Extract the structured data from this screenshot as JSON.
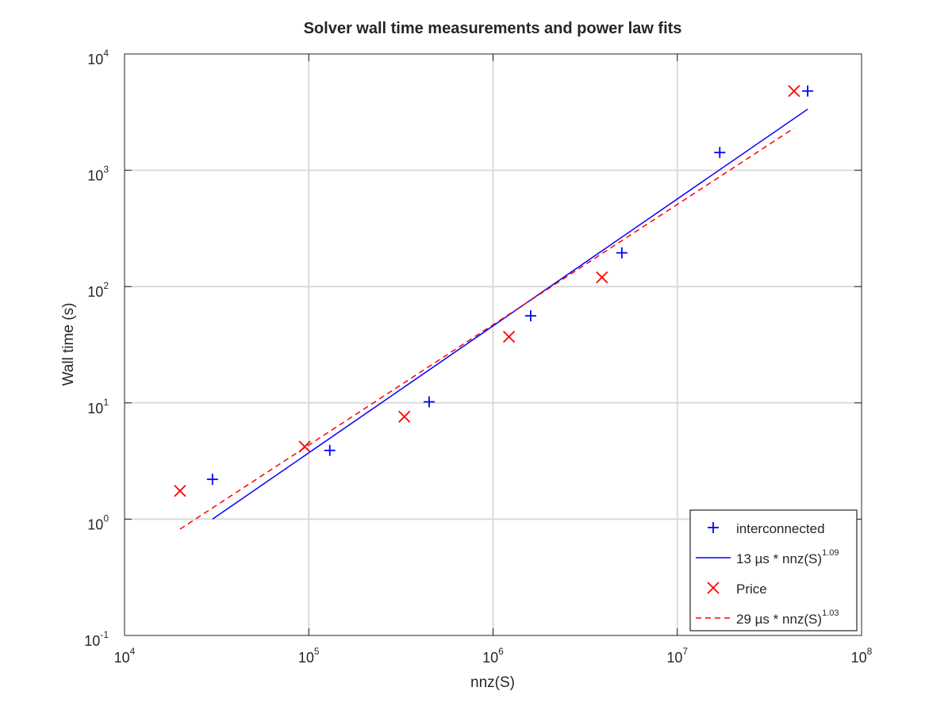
{
  "chart_data": {
    "type": "scatter",
    "title": "Solver wall time measurements and power law fits",
    "xlabel": "nnz(S)",
    "ylabel": "Wall time (s)",
    "xscale": "log",
    "yscale": "log",
    "xlim": [
      10000,
      100000000
    ],
    "ylim": [
      0.1,
      10000
    ],
    "grid": true,
    "legend_position": "bottom-right",
    "x_ticks": [
      {
        "base": "10",
        "exp": "4",
        "value": 10000
      },
      {
        "base": "10",
        "exp": "5",
        "value": 100000
      },
      {
        "base": "10",
        "exp": "6",
        "value": 1000000
      },
      {
        "base": "10",
        "exp": "7",
        "value": 10000000
      },
      {
        "base": "10",
        "exp": "8",
        "value": 100000000
      }
    ],
    "y_ticks": [
      {
        "base": "10",
        "exp": "-1",
        "value": 0.1
      },
      {
        "base": "10",
        "exp": "0",
        "value": 1
      },
      {
        "base": "10",
        "exp": "1",
        "value": 10
      },
      {
        "base": "10",
        "exp": "2",
        "value": 100
      },
      {
        "base": "10",
        "exp": "3",
        "value": 1000
      },
      {
        "base": "10",
        "exp": "4",
        "value": 10000
      }
    ],
    "series": [
      {
        "name": "interconnected",
        "kind": "markers",
        "marker": "plus",
        "color": "#0000ff",
        "points": [
          {
            "x": 30000,
            "y": 2.2
          },
          {
            "x": 130000,
            "y": 3.9
          },
          {
            "x": 450000,
            "y": 10.2
          },
          {
            "x": 1600000,
            "y": 56
          },
          {
            "x": 5000000,
            "y": 195
          },
          {
            "x": 17000000,
            "y": 1420
          },
          {
            "x": 51000000,
            "y": 4800
          }
        ]
      },
      {
        "name_parts": {
          "prefix": "13 µs * nnz(S)",
          "exponent": "1.09"
        },
        "kind": "line",
        "style": "solid",
        "color": "#0000ff",
        "points": [
          {
            "x": 30000,
            "y": 1.0
          },
          {
            "x": 51000000,
            "y": 3350
          }
        ]
      },
      {
        "name": "Price",
        "kind": "markers",
        "marker": "cross",
        "color": "#ff0000",
        "points": [
          {
            "x": 20000,
            "y": 1.75
          },
          {
            "x": 95000,
            "y": 4.2
          },
          {
            "x": 330000,
            "y": 7.6
          },
          {
            "x": 1220000,
            "y": 37
          },
          {
            "x": 3900000,
            "y": 120
          },
          {
            "x": 43000000,
            "y": 4800
          }
        ]
      },
      {
        "name_parts": {
          "prefix": "29 µs * nnz(S)",
          "exponent": "1.03"
        },
        "kind": "line",
        "style": "dashed",
        "color": "#ff0000",
        "points": [
          {
            "x": 20000,
            "y": 0.82
          },
          {
            "x": 43000000,
            "y": 2300
          }
        ]
      }
    ]
  }
}
